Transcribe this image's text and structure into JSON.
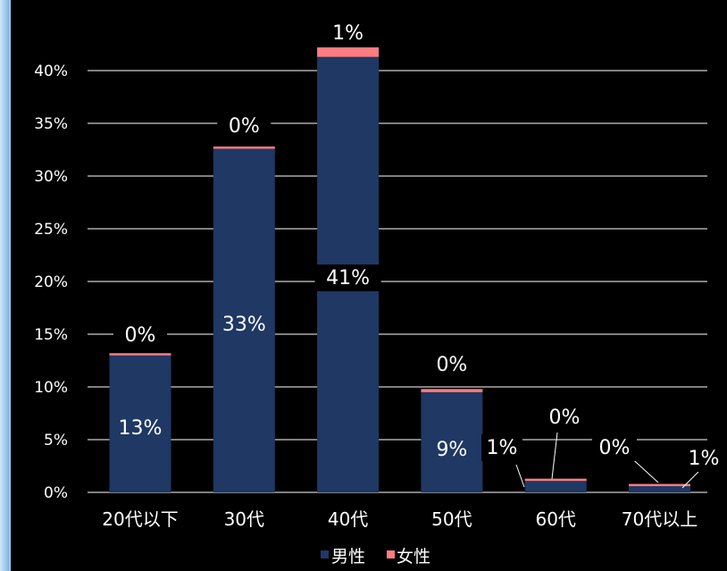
{
  "chart_data": {
    "type": "bar",
    "stacked": true,
    "categories": [
      "20代以下",
      "30代",
      "40代",
      "50代",
      "60代",
      "70代以上"
    ],
    "series": [
      {
        "name": "男性",
        "color": "#1f3864",
        "values": [
          13,
          32.6,
          41.3,
          9.5,
          1.1,
          0.6
        ],
        "labels": [
          "13%",
          "33%",
          "41%",
          "9%",
          "1%",
          "1%"
        ]
      },
      {
        "name": "女性",
        "color": "#ff7c80",
        "values": [
          0.2,
          0.2,
          0.9,
          0.3,
          0.2,
          0.2
        ],
        "labels": [
          "0%",
          "0%",
          "1%",
          "0%",
          "0%",
          "0%"
        ]
      }
    ],
    "yticks": [
      "0%",
      "5%",
      "10%",
      "15%",
      "20%",
      "25%",
      "30%",
      "35%",
      "40%"
    ],
    "ylim": [
      0,
      40
    ],
    "grid": true,
    "legend_position": "bottom"
  }
}
